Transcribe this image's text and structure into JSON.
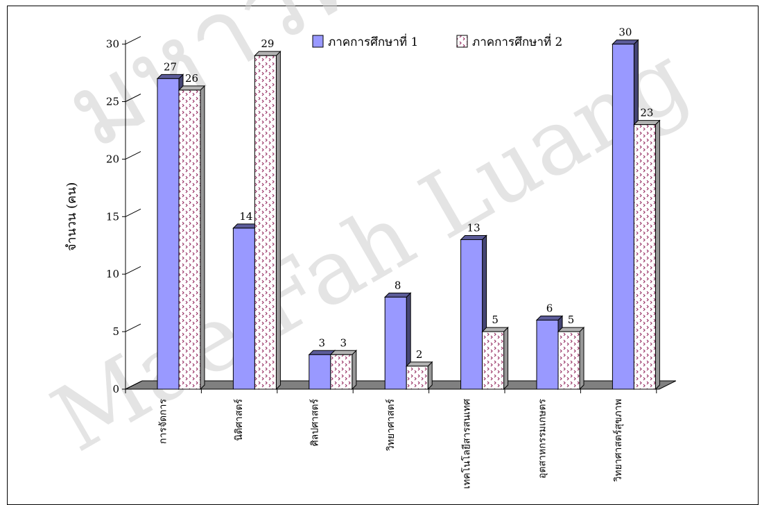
{
  "watermark": {
    "line1": "มหาวิทยาลัยแม่ฟ้าหลวง",
    "line2": "Mae Fah Luang"
  },
  "chart_data": {
    "type": "bar",
    "title": "",
    "xlabel": "",
    "ylabel": "จำนวน (คน)",
    "ylim": [
      0,
      30
    ],
    "yticks": [
      0,
      5,
      10,
      15,
      20,
      25,
      30
    ],
    "legend_position": "top-right",
    "categories": [
      "การจัดการ",
      "นิติศาสตร์",
      "ศิลปศาสตร์",
      "วิทยาศาสตร์",
      "เทคโนโลยีสารสนเทศ",
      "อุตสาหกรรมเกษตร",
      "วิทยาศาสตร์สุขภาพ"
    ],
    "series": [
      {
        "name": "ภาคการศึกษาที่ 1",
        "values": [
          27,
          14,
          3,
          8,
          13,
          6,
          30
        ],
        "color": "#9999ff"
      },
      {
        "name": "ภาคการศึกษาที่ 2",
        "values": [
          26,
          29,
          3,
          2,
          5,
          5,
          23
        ],
        "color": "#ffffff",
        "pattern_color": "#993366"
      }
    ],
    "floor_color": "#808080"
  }
}
